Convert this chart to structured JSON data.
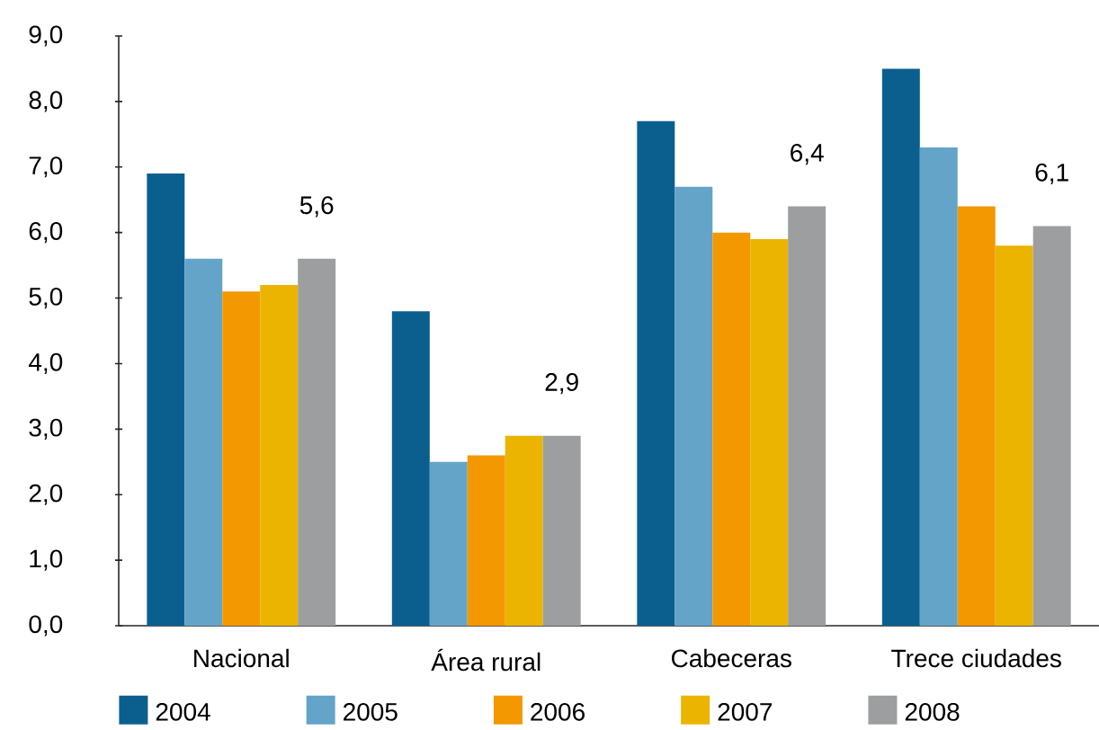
{
  "chart_data": {
    "type": "bar",
    "categories": [
      "Nacional",
      "Área rural",
      "Cabeceras",
      "Trece ciudades"
    ],
    "series": [
      {
        "name": "2004",
        "color": "#0b5f8f",
        "values": [
          6.9,
          4.8,
          7.7,
          8.5
        ]
      },
      {
        "name": "2005",
        "color": "#64a4c9",
        "values": [
          5.6,
          2.5,
          6.7,
          7.3
        ]
      },
      {
        "name": "2006",
        "color": "#f39800",
        "values": [
          5.1,
          2.6,
          6.0,
          6.4
        ]
      },
      {
        "name": "2007",
        "color": "#ebb400",
        "values": [
          5.2,
          2.9,
          5.9,
          5.8
        ]
      },
      {
        "name": "2008",
        "color": "#9d9ea0",
        "values": [
          5.6,
          2.9,
          6.4,
          6.1
        ],
        "value_labels": [
          "5,6",
          "2,9",
          "6,4",
          "6,1"
        ]
      }
    ],
    "ylim": [
      0,
      9
    ],
    "yticks": [
      {
        "value": 0,
        "label": "0,0"
      },
      {
        "value": 1,
        "label": "1,0"
      },
      {
        "value": 2,
        "label": "2,0"
      },
      {
        "value": 3,
        "label": "3,0"
      },
      {
        "value": 4,
        "label": "4,0"
      },
      {
        "value": 5,
        "label": "5,0"
      },
      {
        "value": 6,
        "label": "6,0"
      },
      {
        "value": 7,
        "label": "7,0"
      },
      {
        "value": 8,
        "label": "8,0"
      },
      {
        "value": 9,
        "label": "9,0"
      }
    ],
    "legend": "bottom"
  }
}
